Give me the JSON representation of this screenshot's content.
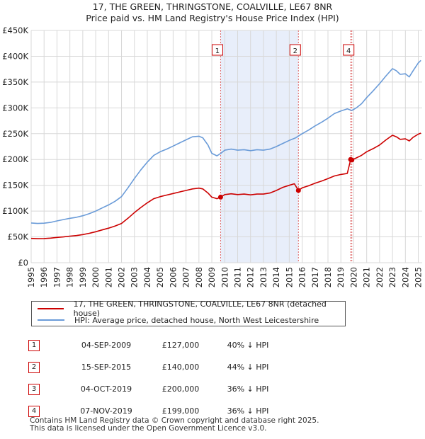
{
  "title_line1": "17, THE GREEN, THRINGSTONE, COALVILLE, LE67 8NR",
  "title_line2": "Price paid vs. HM Land Registry's House Price Index (HPI)",
  "legend": {
    "property": "17, THE GREEN, THRINGSTONE, COALVILLE, LE67 8NR (detached house)",
    "hpi": "HPI: Average price, detached house, North West Leicestershire"
  },
  "sales": [
    {
      "num": "1",
      "date": "04-SEP-2009",
      "price": "£127,000",
      "hpi": "40% ↓ HPI"
    },
    {
      "num": "2",
      "date": "15-SEP-2015",
      "price": "£140,000",
      "hpi": "44% ↓ HPI"
    },
    {
      "num": "3",
      "date": "04-OCT-2019",
      "price": "£200,000",
      "hpi": "36% ↓ HPI"
    },
    {
      "num": "4",
      "date": "07-NOV-2019",
      "price": "£199,000",
      "hpi": "36% ↓ HPI"
    }
  ],
  "footer": {
    "line1": "Contains HM Land Registry data © Crown copyright and database right 2025.",
    "line2": "This data is licensed under the Open Government Licence v3.0."
  },
  "colors": {
    "property": "#cc0000",
    "hpi": "#6a9bd8",
    "shade": "#e8eefa"
  },
  "chart_data": {
    "type": "line",
    "title": "Price paid vs. HM Land Registry's House Price Index (HPI)",
    "xlim": [
      1995,
      2025.3
    ],
    "ylim": [
      0,
      450000
    ],
    "x_ticks": [
      "1995",
      "1996",
      "1997",
      "1998",
      "1999",
      "2000",
      "2001",
      "2002",
      "2003",
      "2004",
      "2005",
      "2006",
      "2007",
      "2008",
      "2009",
      "2010",
      "2011",
      "2012",
      "2013",
      "2014",
      "2015",
      "2016",
      "2017",
      "2018",
      "2019",
      "2020",
      "2021",
      "2022",
      "2023",
      "2024",
      "2025"
    ],
    "y_ticks": [
      {
        "value": 0,
        "label": "£0"
      },
      {
        "value": 50000,
        "label": "£50K"
      },
      {
        "value": 100000,
        "label": "£100K"
      },
      {
        "value": 150000,
        "label": "£150K"
      },
      {
        "value": 200000,
        "label": "£200K"
      },
      {
        "value": 250000,
        "label": "£250K"
      },
      {
        "value": 300000,
        "label": "£300K"
      },
      {
        "value": 350000,
        "label": "£350K"
      },
      {
        "value": 400000,
        "label": "£400K"
      },
      {
        "value": 450000,
        "label": "£450K"
      }
    ],
    "shaded_range": [
      2009.68,
      2015.71
    ],
    "series": [
      {
        "name": "HPI: Average price, detached house, North West Leicestershire",
        "points": [
          [
            1995.0,
            77000
          ],
          [
            1995.5,
            76000
          ],
          [
            1996.0,
            76500
          ],
          [
            1996.5,
            78000
          ],
          [
            1997.0,
            81000
          ],
          [
            1997.5,
            83500
          ],
          [
            1998.0,
            86000
          ],
          [
            1998.5,
            88000
          ],
          [
            1999.0,
            91000
          ],
          [
            1999.5,
            95000
          ],
          [
            2000.0,
            100000
          ],
          [
            2000.5,
            106000
          ],
          [
            2001.0,
            112000
          ],
          [
            2001.5,
            119000
          ],
          [
            2002.0,
            128000
          ],
          [
            2002.5,
            145000
          ],
          [
            2003.0,
            163000
          ],
          [
            2003.5,
            180000
          ],
          [
            2004.0,
            195000
          ],
          [
            2004.5,
            208000
          ],
          [
            2005.0,
            215000
          ],
          [
            2005.5,
            220000
          ],
          [
            2006.0,
            226000
          ],
          [
            2006.5,
            232000
          ],
          [
            2007.0,
            238000
          ],
          [
            2007.5,
            244000
          ],
          [
            2008.0,
            245000
          ],
          [
            2008.3,
            242000
          ],
          [
            2008.7,
            228000
          ],
          [
            2009.0,
            212000
          ],
          [
            2009.4,
            207000
          ],
          [
            2009.7,
            212000
          ],
          [
            2010.0,
            218000
          ],
          [
            2010.5,
            220000
          ],
          [
            2011.0,
            218000
          ],
          [
            2011.5,
            219000
          ],
          [
            2012.0,
            217000
          ],
          [
            2012.5,
            219000
          ],
          [
            2013.0,
            218000
          ],
          [
            2013.5,
            220000
          ],
          [
            2014.0,
            225000
          ],
          [
            2014.5,
            231000
          ],
          [
            2015.0,
            237000
          ],
          [
            2015.5,
            242000
          ],
          [
            2016.0,
            250000
          ],
          [
            2016.5,
            257000
          ],
          [
            2017.0,
            265000
          ],
          [
            2017.5,
            272000
          ],
          [
            2018.0,
            280000
          ],
          [
            2018.5,
            289000
          ],
          [
            2019.0,
            294000
          ],
          [
            2019.5,
            298000
          ],
          [
            2019.85,
            295000
          ],
          [
            2020.2,
            300000
          ],
          [
            2020.6,
            308000
          ],
          [
            2021.0,
            320000
          ],
          [
            2021.5,
            333000
          ],
          [
            2022.0,
            347000
          ],
          [
            2022.5,
            362000
          ],
          [
            2023.0,
            376000
          ],
          [
            2023.3,
            372000
          ],
          [
            2023.6,
            365000
          ],
          [
            2024.0,
            366000
          ],
          [
            2024.3,
            360000
          ],
          [
            2024.6,
            372000
          ],
          [
            2025.0,
            387000
          ],
          [
            2025.2,
            392000
          ]
        ]
      },
      {
        "name": "17, THE GREEN, THRINGSTONE, COALVILLE, LE67 8NR (detached house)",
        "points": [
          [
            1995.0,
            47000
          ],
          [
            1995.5,
            46500
          ],
          [
            1996.0,
            46800
          ],
          [
            1996.5,
            47600
          ],
          [
            1997.0,
            49000
          ],
          [
            1997.5,
            50000
          ],
          [
            1998.0,
            51500
          ],
          [
            1998.5,
            52600
          ],
          [
            1999.0,
            54500
          ],
          [
            1999.5,
            57000
          ],
          [
            2000.0,
            60000
          ],
          [
            2000.5,
            63500
          ],
          [
            2001.0,
            67000
          ],
          [
            2001.5,
            71000
          ],
          [
            2002.0,
            76000
          ],
          [
            2002.5,
            86000
          ],
          [
            2003.0,
            97000
          ],
          [
            2003.5,
            107000
          ],
          [
            2004.0,
            116000
          ],
          [
            2004.5,
            124000
          ],
          [
            2005.0,
            128000
          ],
          [
            2005.5,
            131000
          ],
          [
            2006.0,
            134000
          ],
          [
            2006.5,
            137000
          ],
          [
            2007.0,
            140000
          ],
          [
            2007.5,
            143000
          ],
          [
            2008.0,
            144500
          ],
          [
            2008.3,
            143000
          ],
          [
            2008.7,
            135000
          ],
          [
            2009.0,
            127000
          ],
          [
            2009.4,
            124000
          ],
          [
            2009.68,
            127000
          ],
          [
            2010.0,
            132000
          ],
          [
            2010.5,
            133500
          ],
          [
            2011.0,
            132000
          ],
          [
            2011.5,
            133000
          ],
          [
            2012.0,
            131500
          ],
          [
            2012.5,
            133000
          ],
          [
            2013.0,
            133000
          ],
          [
            2013.5,
            135000
          ],
          [
            2014.0,
            140000
          ],
          [
            2014.5,
            146000
          ],
          [
            2015.0,
            150000
          ],
          [
            2015.4,
            153000
          ],
          [
            2015.71,
            140000
          ],
          [
            2016.0,
            145000
          ],
          [
            2016.5,
            149000
          ],
          [
            2017.0,
            154000
          ],
          [
            2017.5,
            158000
          ],
          [
            2018.0,
            163000
          ],
          [
            2018.5,
            168000
          ],
          [
            2019.0,
            171000
          ],
          [
            2019.5,
            173000
          ],
          [
            2019.76,
            200000
          ],
          [
            2019.85,
            199000
          ],
          [
            2020.2,
            203000
          ],
          [
            2020.6,
            208000
          ],
          [
            2021.0,
            215000
          ],
          [
            2021.5,
            221000
          ],
          [
            2022.0,
            228000
          ],
          [
            2022.5,
            238000
          ],
          [
            2023.0,
            247000
          ],
          [
            2023.3,
            244000
          ],
          [
            2023.6,
            239000
          ],
          [
            2024.0,
            240000
          ],
          [
            2024.3,
            236000
          ],
          [
            2024.6,
            243000
          ],
          [
            2025.0,
            249000
          ],
          [
            2025.2,
            251000
          ]
        ]
      }
    ],
    "sale_points": [
      {
        "label": "1",
        "x": 2009.68,
        "y": 127000
      },
      {
        "label": "2",
        "x": 2015.71,
        "y": 140000
      },
      {
        "label": "3",
        "x": 2019.76,
        "y": 200000
      },
      {
        "label": "4",
        "x": 2019.85,
        "y": 199000
      }
    ],
    "marker_boxes": [
      {
        "label": "1",
        "x": 2009.68
      },
      {
        "label": "2",
        "x": 2015.71
      },
      {
        "label": "4",
        "x": 2019.85
      }
    ]
  }
}
